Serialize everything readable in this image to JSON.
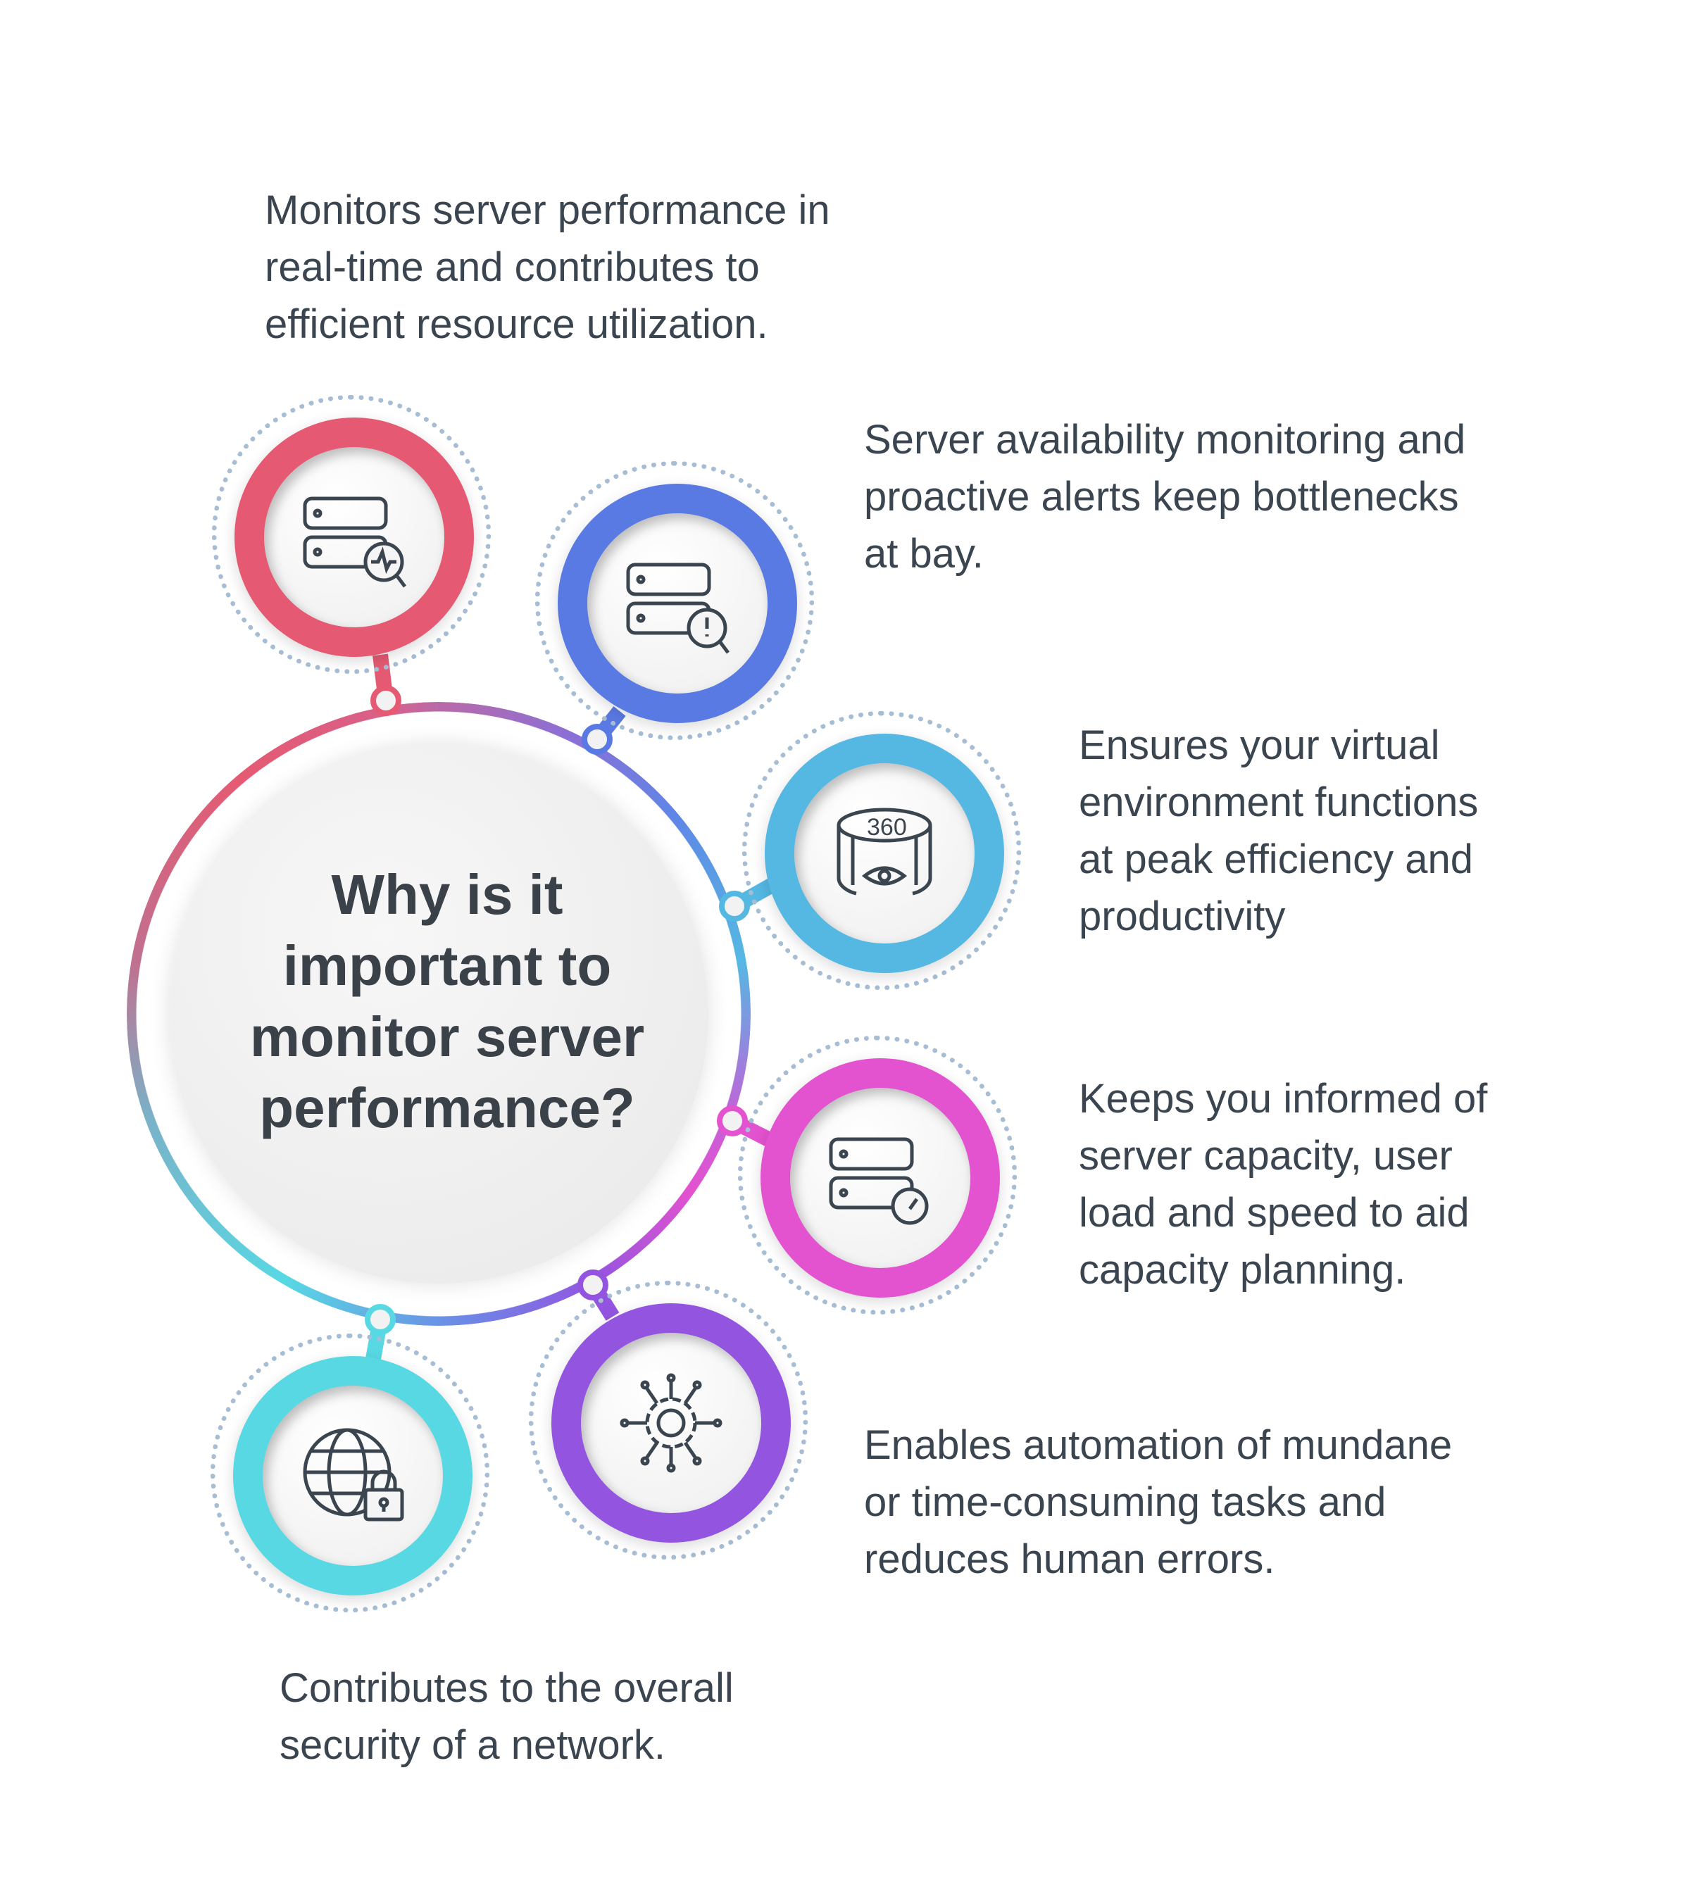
{
  "center": {
    "title": "Why is it\nimportant to\nmonitor server\nperformance?"
  },
  "items": [
    {
      "text": "Monitors server performance in\nreal-time and contributes to\nefficient resource utilization.",
      "icon": "server-activity-search-icon",
      "color": "#E55A72"
    },
    {
      "text": "Server availability monitoring and\nproactive alerts keep bottlenecks\nat bay.",
      "icon": "server-alert-search-icon",
      "color": "#5A7AE3"
    },
    {
      "text": "Ensures your virtual\nenvironment functions\nat peak efficiency and\nproductivity",
      "icon": "360-view-icon",
      "icon_label": "360",
      "color": "#55B8E3"
    },
    {
      "text": "Keeps you informed of\nserver capacity, user\nload and speed to aid\ncapacity planning.",
      "icon": "server-speedometer-icon",
      "color": "#E352CF"
    },
    {
      "text": "Enables automation of mundane\nor time-consuming tasks and\nreduces human errors.",
      "icon": "automation-gear-circuit-icon",
      "color": "#9355E0"
    },
    {
      "text": "Contributes to the overall\nsecurity of a network.",
      "icon": "globe-lock-icon",
      "color": "#58D8E3"
    }
  ]
}
